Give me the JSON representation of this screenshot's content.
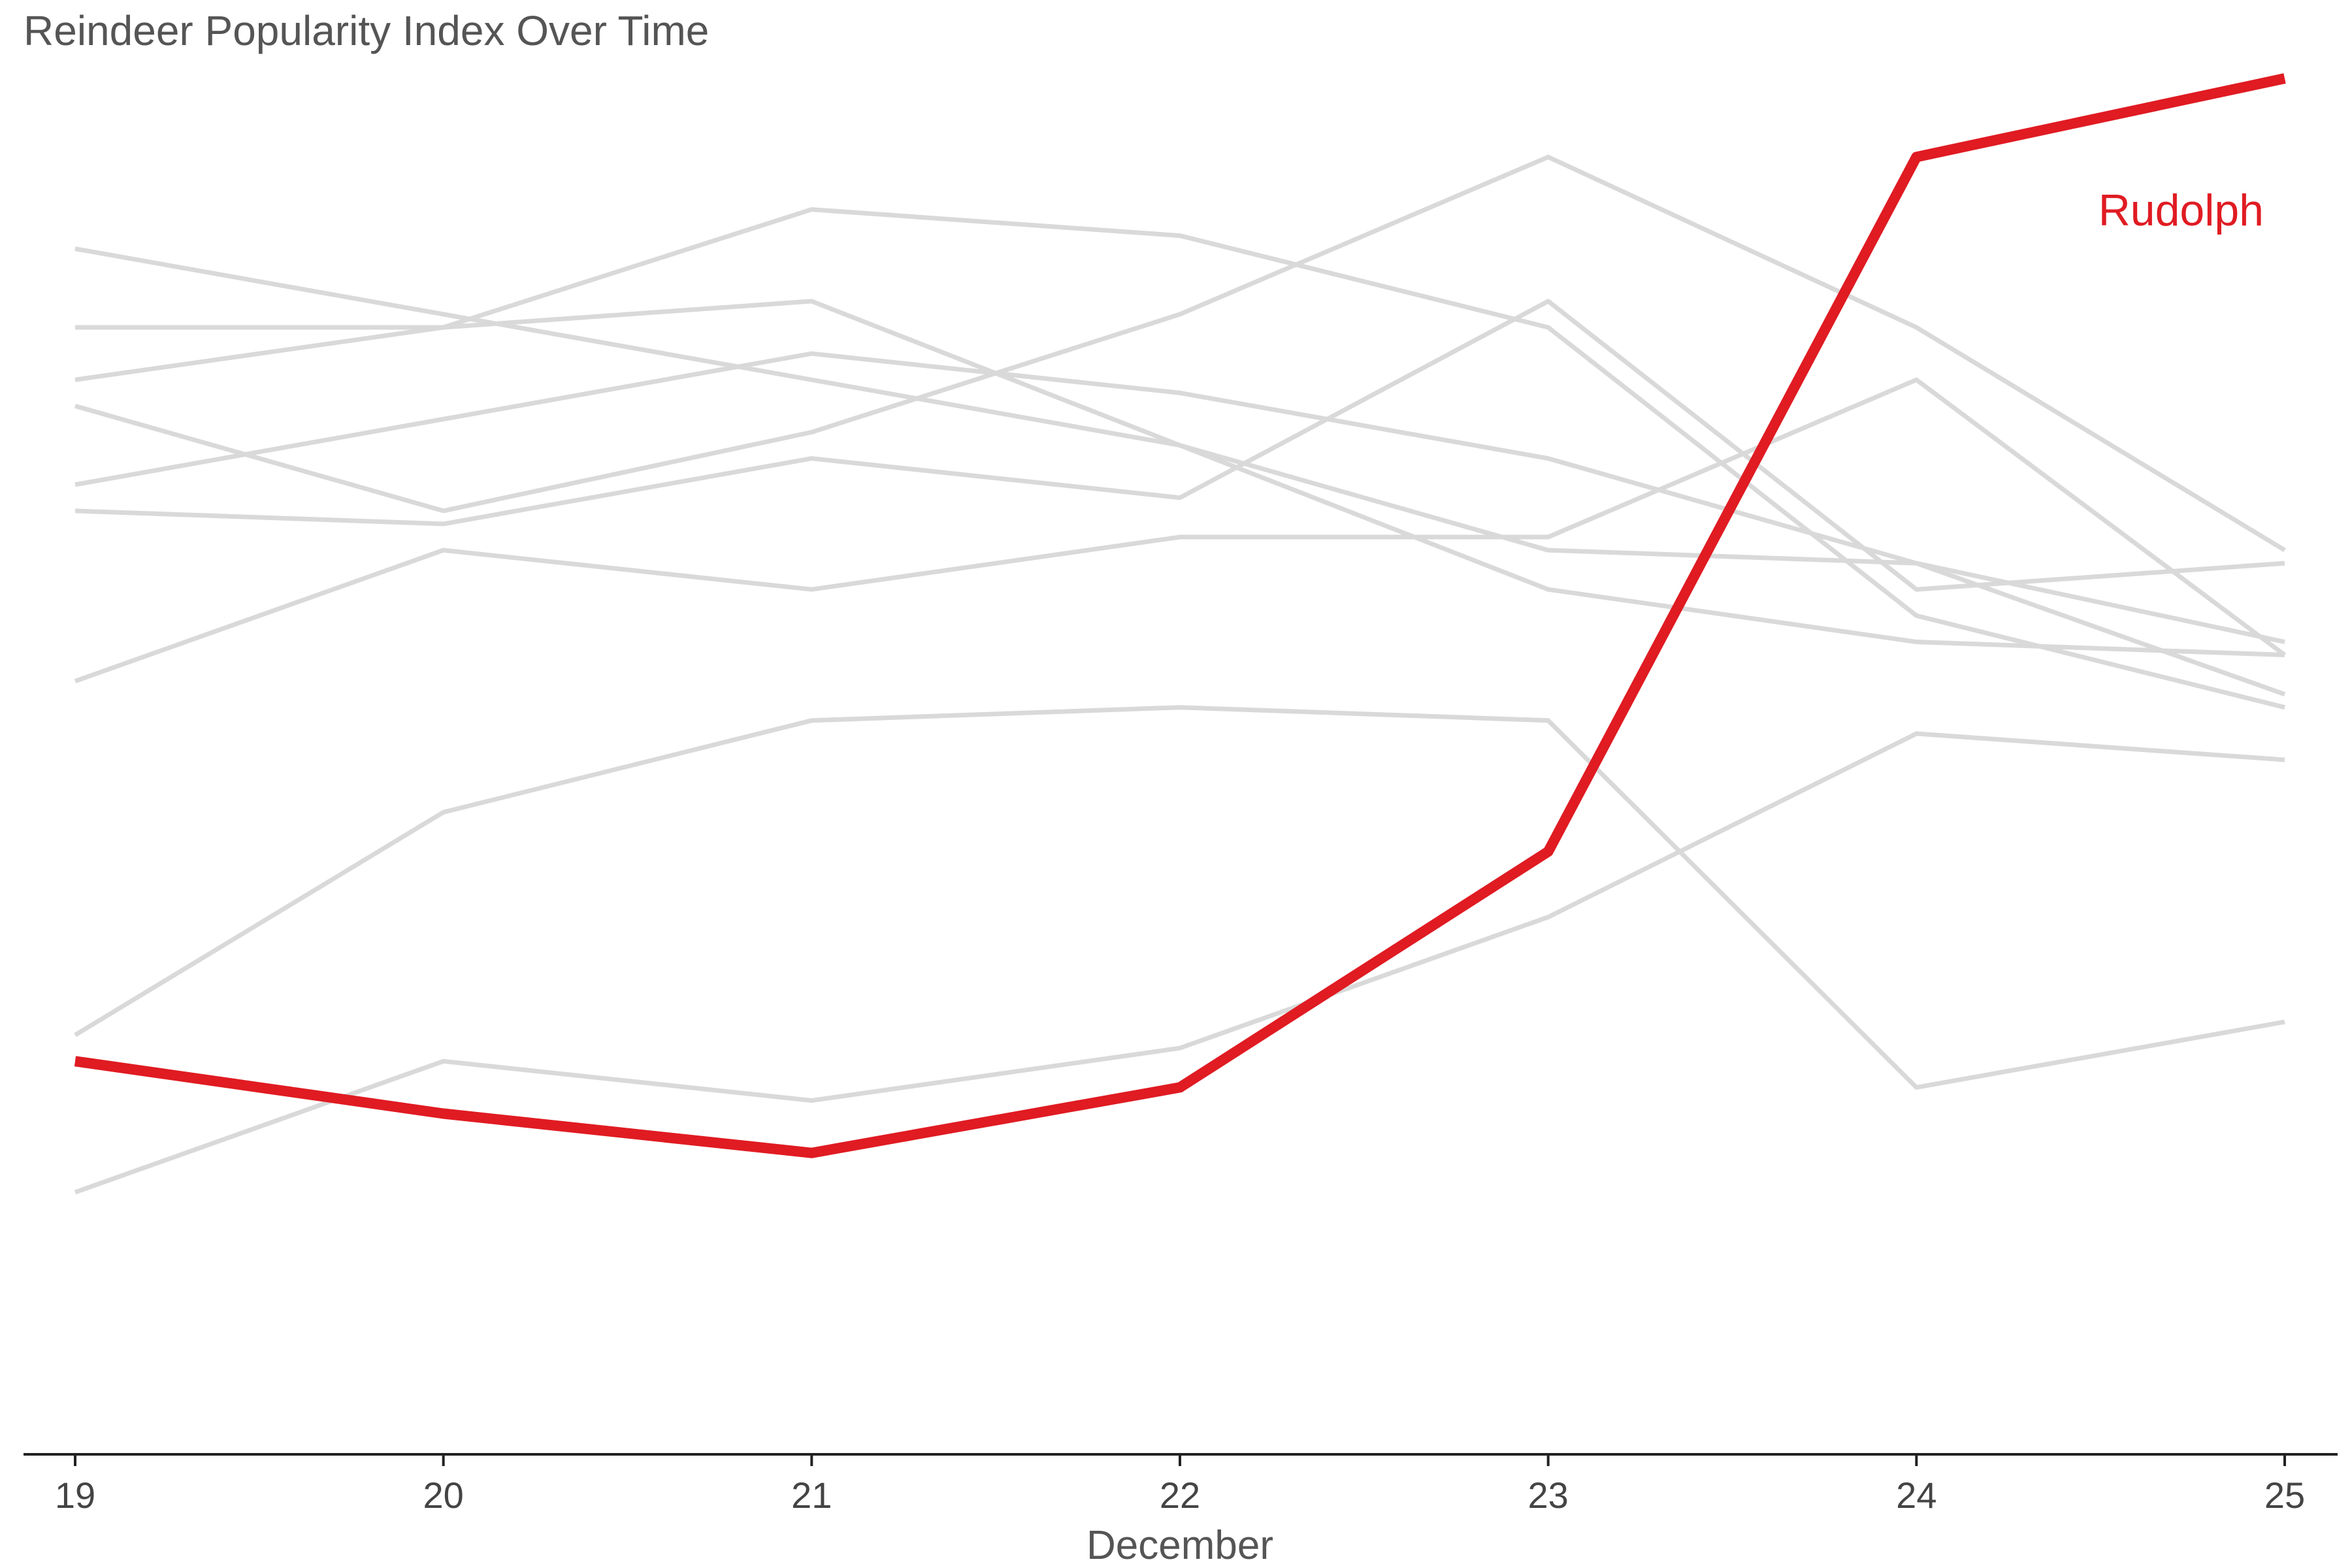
{
  "chart_data": {
    "type": "line",
    "title": "Reindeer Popularity Index Over Time",
    "xlabel": "December",
    "ylabel": "",
    "x": [
      19,
      20,
      21,
      22,
      23,
      24,
      25
    ],
    "xlim": [
      19,
      25
    ],
    "ylim": [
      0,
      105
    ],
    "grid": false,
    "background_color": "#d9d9d9",
    "highlight_color": "#e01b22",
    "series": [
      {
        "values": [
          92,
          87,
          82,
          77,
          69,
          68,
          58
        ]
      },
      {
        "values": [
          72,
          71,
          76,
          73,
          88,
          66,
          68
        ]
      },
      {
        "values": [
          59,
          69,
          66,
          70,
          70,
          82,
          61
        ]
      },
      {
        "values": [
          86,
          86,
          95,
          93,
          86,
          64,
          57
        ]
      },
      {
        "values": [
          82,
          86,
          88,
          77,
          66,
          62,
          61
        ]
      },
      {
        "values": [
          74,
          79,
          84,
          81,
          76,
          68,
          62
        ]
      },
      {
        "values": [
          32,
          49,
          56,
          57,
          56,
          28,
          33
        ]
      },
      {
        "values": [
          80,
          72,
          78,
          87,
          99,
          86,
          69
        ]
      },
      {
        "values": [
          20,
          30,
          27,
          31,
          41,
          55,
          53
        ]
      },
      {
        "name": "Rudolph",
        "values": [
          30,
          26,
          23,
          28,
          46,
          99,
          105
        ],
        "highlight": true
      }
    ]
  }
}
